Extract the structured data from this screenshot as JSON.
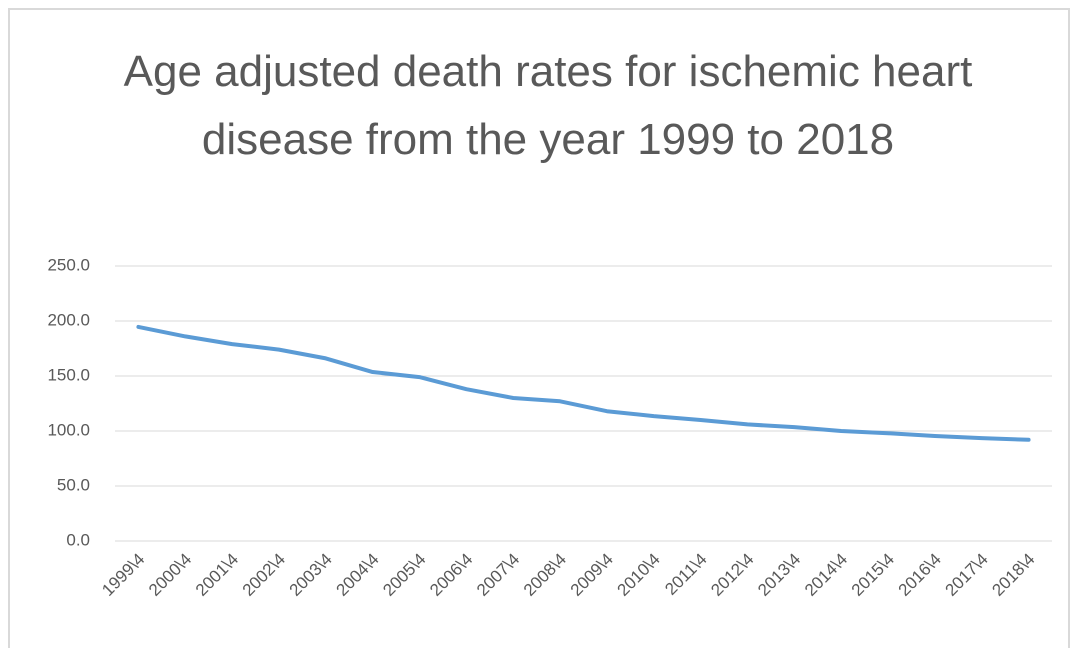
{
  "chart_data": {
    "type": "line",
    "title": "Age adjusted death rates for ischemic heart disease from the year 1999 to 2018",
    "categories": [
      "1999\\4",
      "2000\\4",
      "2001\\4",
      "2002\\4",
      "2003\\4",
      "2004\\4",
      "2005\\4",
      "2006\\4",
      "2007\\4",
      "2008\\4",
      "2009\\4",
      "2010\\4",
      "2011\\4",
      "2012\\4",
      "2013\\4",
      "2014\\4",
      "2015\\4",
      "2016\\4",
      "2017\\4",
      "2018\\4"
    ],
    "values": [
      194.6,
      186.0,
      179.0,
      174.0,
      166.0,
      153.6,
      149.0,
      138.0,
      130.0,
      127.0,
      118.0,
      113.5,
      110.0,
      106.0,
      103.5,
      100.0,
      98.0,
      95.5,
      93.5,
      92.0
    ],
    "color": "#5b9bd5",
    "ylim": [
      0,
      250
    ],
    "yticks": [
      {
        "value": 0,
        "label": "0.0"
      },
      {
        "value": 50,
        "label": "50.0"
      },
      {
        "value": 100,
        "label": "100.0"
      },
      {
        "value": 150,
        "label": "150.0"
      },
      {
        "value": 200,
        "label": "200.0"
      },
      {
        "value": 250,
        "label": "250.0"
      }
    ],
    "grid": true
  }
}
